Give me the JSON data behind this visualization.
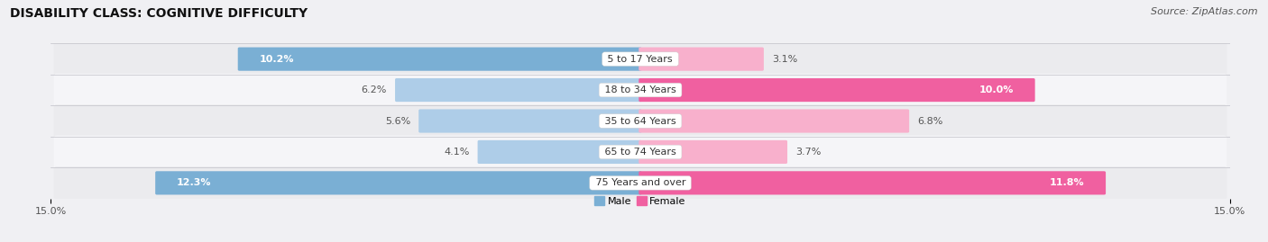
{
  "title": "DISABILITY CLASS: COGNITIVE DIFFICULTY",
  "source": "Source: ZipAtlas.com",
  "categories": [
    "5 to 17 Years",
    "18 to 34 Years",
    "35 to 64 Years",
    "65 to 74 Years",
    "75 Years and over"
  ],
  "male_values": [
    10.2,
    6.2,
    5.6,
    4.1,
    12.3
  ],
  "female_values": [
    3.1,
    10.0,
    6.8,
    3.7,
    11.8
  ],
  "male_color_large": "#7aafd4",
  "male_color_small": "#aecde8",
  "female_color_large": "#f060a0",
  "female_color_small": "#f8b0cc",
  "row_colors": [
    "#ebebee",
    "#f5f5f8"
  ],
  "bg_color": "#f0f0f3",
  "x_max": 15.0,
  "title_fontsize": 10,
  "label_fontsize": 8,
  "category_fontsize": 8,
  "tick_fontsize": 8,
  "source_fontsize": 8,
  "large_threshold": 7.0
}
